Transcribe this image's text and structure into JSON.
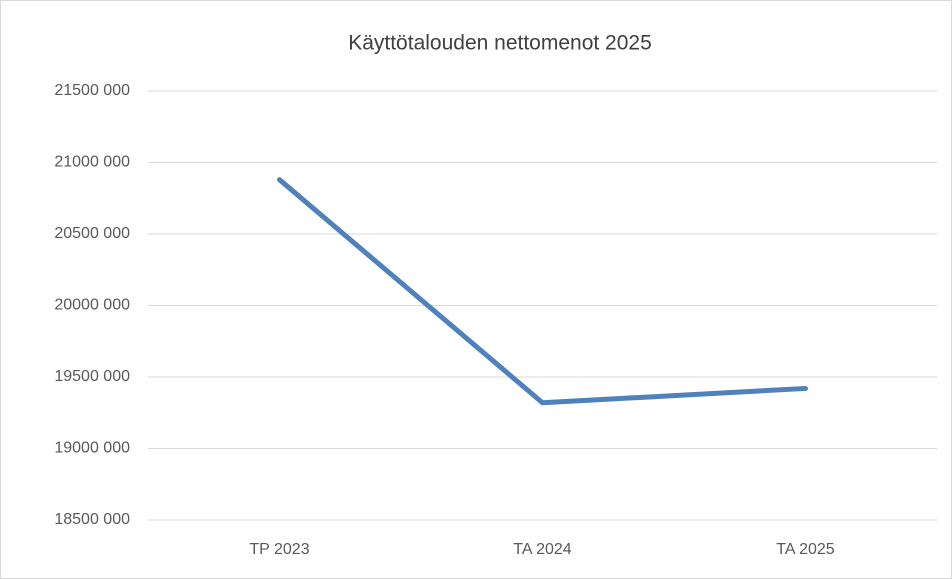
{
  "chart_data": {
    "type": "line",
    "title": "Käyttötalouden nettomenot 2025",
    "categories": [
      "TP 2023",
      "TA 2024",
      "TA 2025"
    ],
    "series": [
      {
        "name": "Käyttötalouden nettomenot",
        "color": "#4f81bd",
        "values": [
          20880000,
          19320000,
          19420000
        ]
      }
    ],
    "ylim": [
      18500000,
      21500000
    ],
    "yticks": [
      {
        "value": 18500000,
        "label": "18500 000"
      },
      {
        "value": 19000000,
        "label": "19000 000"
      },
      {
        "value": 19500000,
        "label": "19500 000"
      },
      {
        "value": 20000000,
        "label": "20000 000"
      },
      {
        "value": 20500000,
        "label": "20500 000"
      },
      {
        "value": 21000000,
        "label": "21000 000"
      },
      {
        "value": 21500000,
        "label": "21500 000"
      }
    ],
    "grid": true
  }
}
